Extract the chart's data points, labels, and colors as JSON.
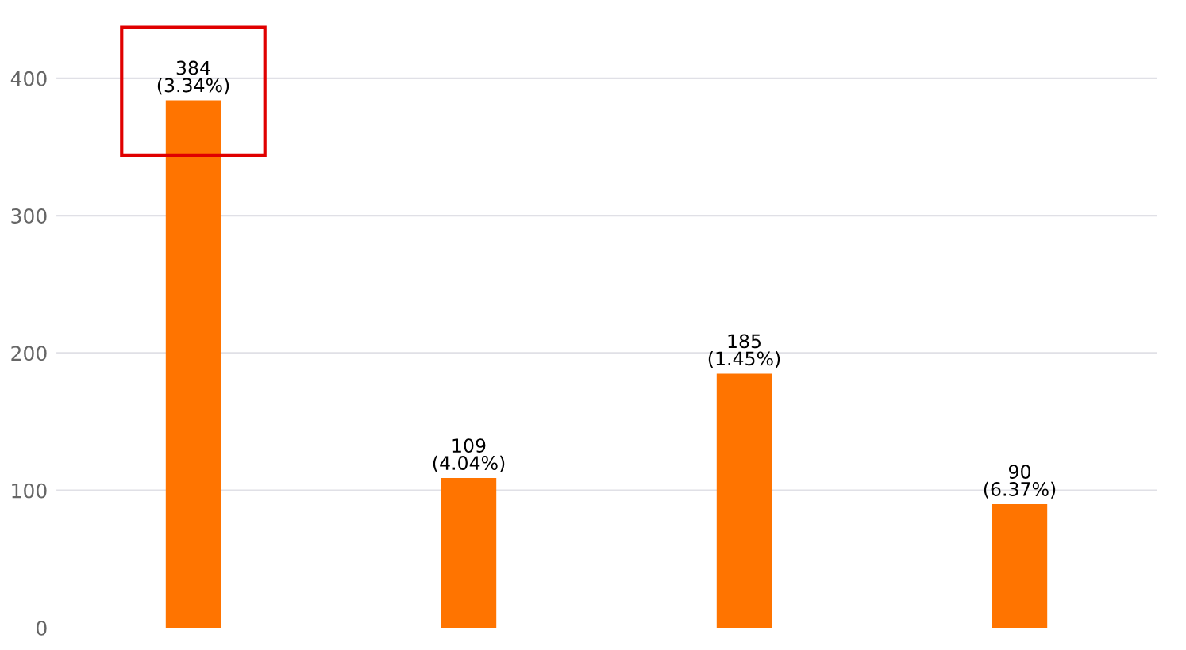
{
  "chart_data": {
    "type": "bar",
    "categories": [
      null,
      null,
      null,
      null
    ],
    "values": [
      384,
      109,
      185,
      90
    ],
    "value_labels": [
      "384\n(3.34%)",
      "109\n(4.04%)",
      "185\n(1.45%)",
      "90\n(6.37%)"
    ],
    "color": "#ff7400",
    "ylim": [
      0,
      457
    ],
    "yticks": [
      0,
      100,
      200,
      300,
      400
    ],
    "grid": "y"
  }
}
